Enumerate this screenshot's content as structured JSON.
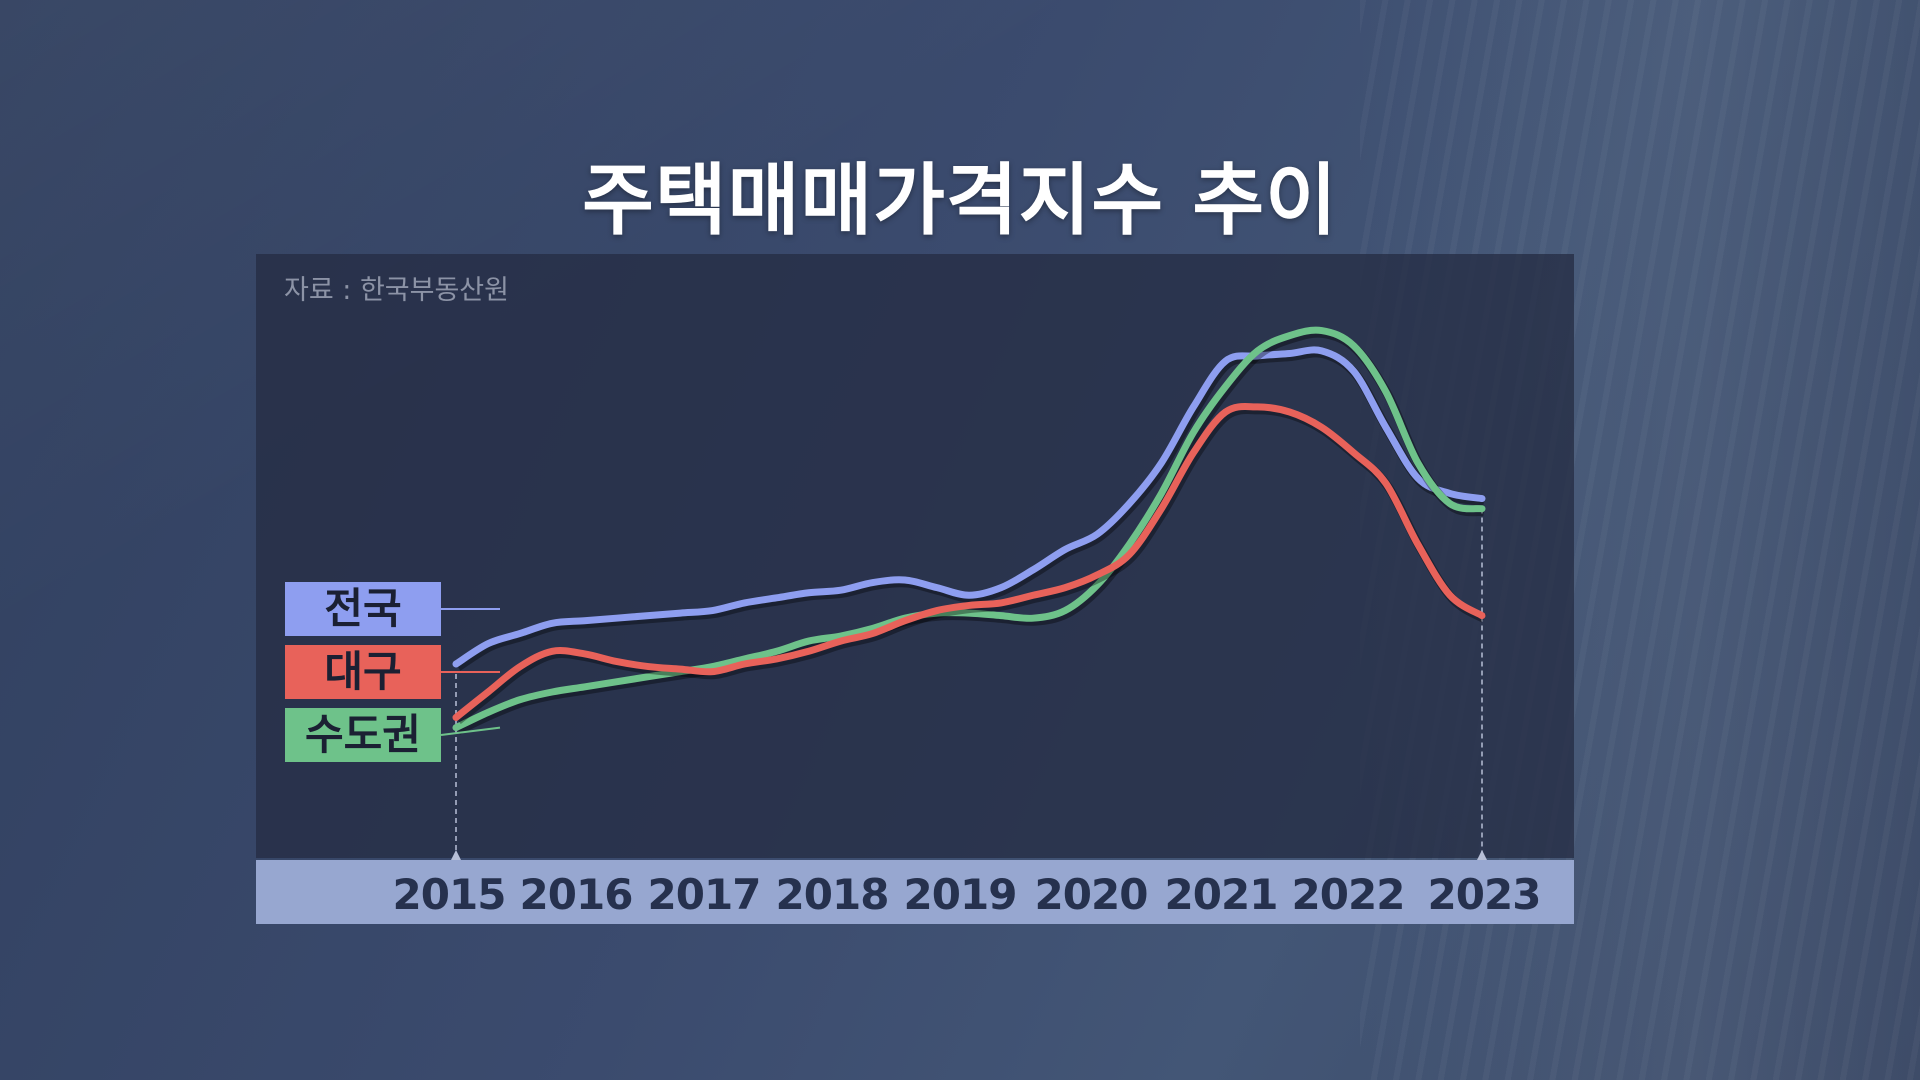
{
  "title": "주택매매가격지수 추이",
  "source": "자료 : 한국부동산원",
  "chart_data": {
    "type": "line",
    "title": "주택매매가격지수 추이",
    "xlabel": "",
    "ylabel": "",
    "grid": false,
    "x": [
      2015.0,
      2015.25,
      2015.5,
      2015.75,
      2016.0,
      2016.25,
      2016.5,
      2016.75,
      2017.0,
      2017.25,
      2017.5,
      2017.75,
      2018.0,
      2018.25,
      2018.5,
      2018.75,
      2019.0,
      2019.25,
      2019.5,
      2019.75,
      2020.0,
      2020.25,
      2020.5,
      2020.75,
      2021.0,
      2021.25,
      2021.5,
      2021.75,
      2022.0,
      2022.25,
      2022.5,
      2022.75,
      2023.0
    ],
    "x_ticks": [
      "2015",
      "2016",
      "2017",
      "2018",
      "2019",
      "2020",
      "2021",
      "2022",
      "2023"
    ],
    "series": [
      {
        "name": "전국",
        "color": "#8e9ef0",
        "values": [
          58.5,
          62.5,
          64.5,
          66.5,
          67.0,
          67.5,
          68.0,
          68.5,
          69.0,
          70.5,
          71.5,
          72.5,
          73.0,
          74.5,
          75.0,
          73.5,
          72.0,
          73.5,
          77.0,
          81.0,
          84.0,
          90.0,
          98.0,
          109.0,
          118.0,
          119.0,
          119.5,
          120.0,
          116.0,
          105.0,
          95.0,
          92.0,
          91.0
        ]
      },
      {
        "name": "대구",
        "color": "#e8625a",
        "values": [
          48.0,
          53.0,
          58.0,
          61.0,
          60.5,
          59.0,
          58.0,
          57.5,
          57.0,
          58.5,
          59.5,
          61.0,
          63.0,
          64.5,
          67.0,
          69.0,
          70.0,
          70.5,
          72.0,
          73.5,
          76.0,
          80.0,
          89.0,
          100.0,
          108.0,
          109.0,
          108.0,
          105.0,
          100.0,
          94.0,
          82.0,
          72.0,
          68.0
        ]
      },
      {
        "name": "수도권",
        "color": "#6ec28a",
        "values": [
          46.0,
          49.0,
          51.5,
          53.0,
          54.0,
          55.0,
          56.0,
          57.0,
          58.0,
          59.5,
          61.0,
          63.0,
          64.0,
          65.5,
          67.5,
          68.5,
          68.5,
          68.0,
          67.5,
          69.0,
          74.0,
          82.0,
          92.0,
          104.0,
          113.0,
          120.0,
          123.0,
          124.0,
          121.0,
          112.0,
          98.0,
          90.0,
          89.0
        ]
      }
    ],
    "xlim": [
      2015,
      2023
    ],
    "ylim": [
      20,
      130
    ]
  }
}
